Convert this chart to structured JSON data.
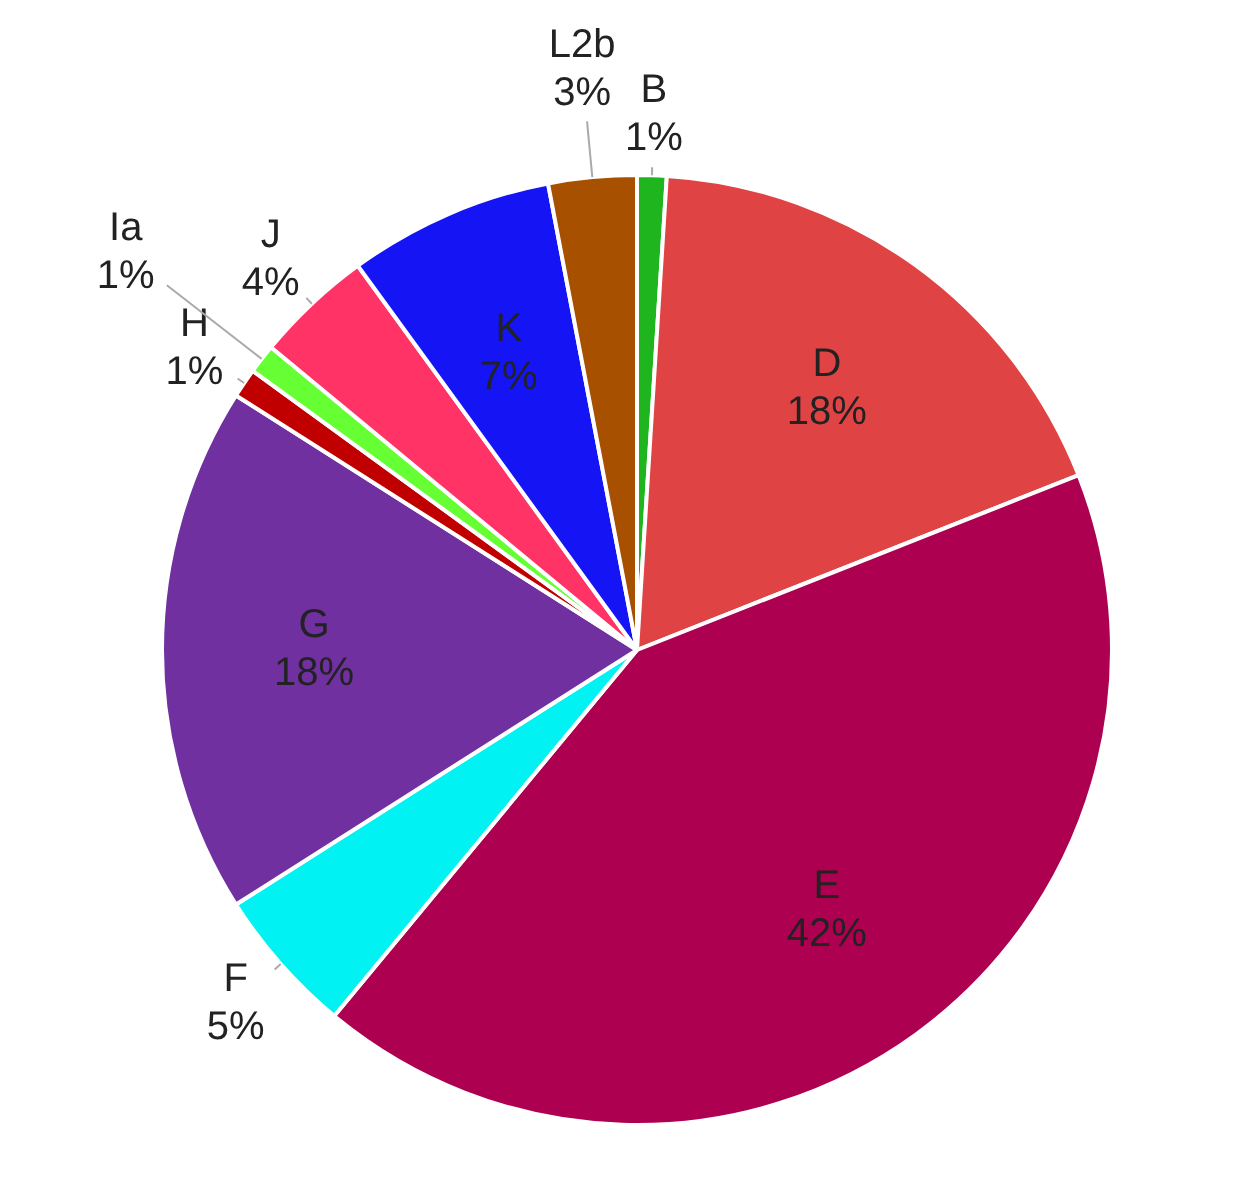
{
  "chart_data": {
    "type": "pie",
    "categories": [
      "B",
      "D",
      "E",
      "F",
      "G",
      "H",
      "Ia",
      "J",
      "K",
      "L2b"
    ],
    "values": [
      1,
      18,
      42,
      5,
      18,
      1,
      1,
      4,
      7,
      3
    ],
    "value_labels": [
      "1%",
      "18%",
      "42%",
      "5%",
      "18%",
      "1%",
      "1%",
      "4%",
      "7%",
      "3%"
    ],
    "colors": [
      "#1fb51f",
      "#e04343",
      "#ad0050",
      "#00f2f2",
      "#7030a0",
      "#c00000",
      "#66ff33",
      "#ff3366",
      "#1414f5",
      "#a65000"
    ],
    "legend": false
  }
}
